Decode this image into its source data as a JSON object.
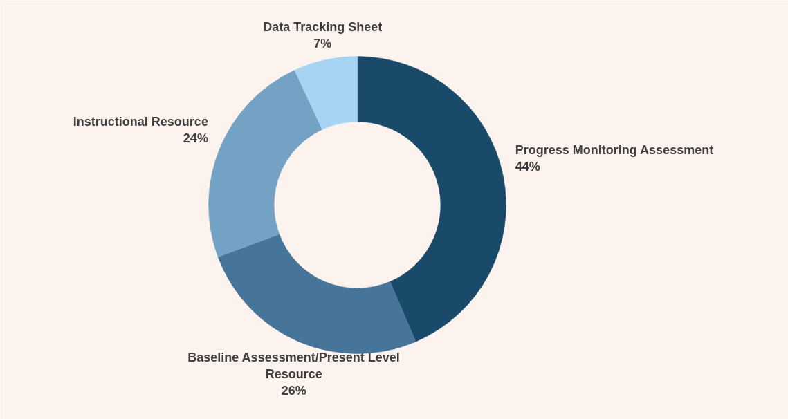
{
  "chart_data": {
    "type": "donut",
    "categories": [
      "Progress Monitoring Assessment",
      "Baseline Assessment/Present Level Resource",
      "Instructional Resource",
      "Data Tracking Sheet"
    ],
    "values": [
      44,
      26,
      24,
      7
    ],
    "colors": [
      "#1a4a6a",
      "#47759a",
      "#74a2c4",
      "#a8d4f4"
    ],
    "value_labels": [
      "44%",
      "26%",
      "24%",
      "7%"
    ]
  }
}
